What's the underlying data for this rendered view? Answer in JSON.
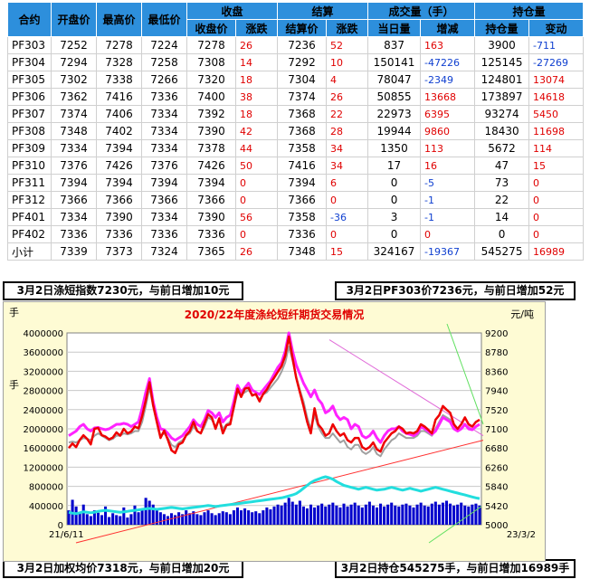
{
  "table": {
    "header_top": [
      "合约",
      "开盘价",
      "最高价",
      "最低价",
      "收盘",
      "结算",
      "成交量（手）",
      "持仓量"
    ],
    "header_sub": [
      "收盘价",
      "涨跌",
      "结算价",
      "涨跌",
      "当日量",
      "增减",
      "持仓量",
      "变动"
    ],
    "rows": [
      {
        "name": "PF303",
        "open": "7252",
        "high": "7278",
        "low": "7224",
        "close": "7278",
        "close_chg": "26",
        "settle": "7236",
        "settle_chg": "52",
        "vol": "837",
        "vol_chg": "163",
        "oi": "3900",
        "oi_chg": "-711"
      },
      {
        "name": "PF304",
        "open": "7294",
        "high": "7328",
        "low": "7258",
        "close": "7308",
        "close_chg": "14",
        "settle": "7292",
        "settle_chg": "10",
        "vol": "150141",
        "vol_chg": "-47226",
        "oi": "125145",
        "oi_chg": "-27269"
      },
      {
        "name": "PF305",
        "open": "7302",
        "high": "7338",
        "low": "7266",
        "close": "7320",
        "close_chg": "18",
        "settle": "7304",
        "settle_chg": "4",
        "vol": "78047",
        "vol_chg": "-2349",
        "oi": "124801",
        "oi_chg": "13074"
      },
      {
        "name": "PF306",
        "open": "7362",
        "high": "7416",
        "low": "7336",
        "close": "7400",
        "close_chg": "38",
        "settle": "7374",
        "settle_chg": "26",
        "vol": "50855",
        "vol_chg": "13668",
        "oi": "173897",
        "oi_chg": "14618"
      },
      {
        "name": "PF307",
        "open": "7374",
        "high": "7406",
        "low": "7334",
        "close": "7392",
        "close_chg": "18",
        "settle": "7368",
        "settle_chg": "22",
        "vol": "22973",
        "vol_chg": "6395",
        "oi": "93274",
        "oi_chg": "5450"
      },
      {
        "name": "PF308",
        "open": "7348",
        "high": "7402",
        "low": "7334",
        "close": "7390",
        "close_chg": "42",
        "settle": "7368",
        "settle_chg": "28",
        "vol": "19944",
        "vol_chg": "9860",
        "oi": "18430",
        "oi_chg": "11698"
      },
      {
        "name": "PF309",
        "open": "7334",
        "high": "7394",
        "low": "7334",
        "close": "7378",
        "close_chg": "44",
        "settle": "7358",
        "settle_chg": "34",
        "vol": "1350",
        "vol_chg": "113",
        "oi": "5672",
        "oi_chg": "114"
      },
      {
        "name": "PF310",
        "open": "7376",
        "high": "7426",
        "low": "7376",
        "close": "7426",
        "close_chg": "50",
        "settle": "7416",
        "settle_chg": "34",
        "vol": "17",
        "vol_chg": "16",
        "oi": "47",
        "oi_chg": "15"
      },
      {
        "name": "PF311",
        "open": "7394",
        "high": "7394",
        "low": "7394",
        "close": "7394",
        "close_chg": "0",
        "settle": "7394",
        "settle_chg": "6",
        "vol": "0",
        "vol_chg": "-5",
        "oi": "73",
        "oi_chg": "0"
      },
      {
        "name": "PF312",
        "open": "7366",
        "high": "7366",
        "low": "7366",
        "close": "7366",
        "close_chg": "0",
        "settle": "7366",
        "settle_chg": "0",
        "vol": "0",
        "vol_chg": "-1",
        "oi": "22",
        "oi_chg": "0"
      },
      {
        "name": "PF401",
        "open": "7334",
        "high": "7390",
        "low": "7334",
        "close": "7390",
        "close_chg": "56",
        "settle": "7358",
        "settle_chg": "-36",
        "vol": "3",
        "vol_chg": "-1",
        "oi": "14",
        "oi_chg": "0"
      },
      {
        "name": "PF402",
        "open": "7336",
        "high": "7336",
        "low": "7336",
        "close": "7336",
        "close_chg": "0",
        "settle": "7336",
        "settle_chg": "0",
        "vol": "0",
        "vol_chg": "0",
        "oi": "0",
        "oi_chg": "0"
      },
      {
        "name": "小计",
        "open": "7339",
        "high": "7373",
        "low": "7324",
        "close": "7365",
        "close_chg": "26",
        "settle": "7348",
        "settle_chg": "15",
        "vol": "324167",
        "vol_chg": "-19367",
        "oi": "545275",
        "oi_chg": "16989"
      }
    ]
  },
  "info": {
    "top_left": "3月2日涤短指数7230元，与前日增加10元",
    "top_right": "3月2日PF303价7236元，与前日增加52元",
    "bottom_left": "3月2日加权均价7318元，与前日增加20元",
    "bottom_right": "3月2日持仓545275手，与前日增加16989手"
  },
  "chart_data": {
    "type": "line",
    "title": "2020/22年度涤纶短纤期货交易情况",
    "left_axis_unit": "手",
    "left_axis_label": "手",
    "right_axis_unit": "元/吨",
    "x_start_label": "21/6/11",
    "x_end_label": "23/3/2",
    "left_ticks": [
      "0",
      "400000",
      "800000",
      "1200000",
      "1600000",
      "2000000",
      "2400000",
      "2800000",
      "3200000",
      "3600000",
      "4000000"
    ],
    "right_ticks": [
      "5000",
      "5420",
      "5840",
      "6260",
      "6680",
      "7100",
      "7520",
      "7940",
      "8360",
      "8780",
      "9200"
    ],
    "left_range": [
      0,
      4000000
    ],
    "right_range": [
      5000,
      9200
    ],
    "grid": true,
    "colors": {
      "price_red": "#ee0000",
      "price_magenta": "#ff22ff",
      "price_gray": "#a0a0a0",
      "open_interest": "#22dede",
      "volume": "#0000cc",
      "trend_red": "#ff3030",
      "trend_pink": "#e06ad8",
      "trend_green": "#60e060"
    },
    "series": [
      {
        "key": "settle_price",
        "axis": "right",
        "color": "#ee0000",
        "values": [
          6680,
          6780,
          6700,
          6860,
          6960,
          6880,
          6760,
          7100,
          7120,
          6960,
          6930,
          6870,
          6910,
          7020,
          6950,
          7100,
          7000,
          7040,
          7150,
          7110,
          7380,
          7720,
          8120,
          7620,
          7250,
          6900,
          7060,
          6860,
          6630,
          6570,
          6760,
          6800,
          6960,
          7050,
          7250,
          7050,
          7000,
          7220,
          7420,
          7350,
          7100,
          7330,
          7000,
          7180,
          7200,
          7580,
          7980,
          7800,
          7980,
          8000,
          7830,
          7860,
          7700,
          7860,
          7960,
          8100,
          8220,
          8350,
          8470,
          8700,
          9120,
          8650,
          8220,
          7900,
          7600,
          7250,
          7000,
          7550,
          7200,
          7100,
          6950,
          7000,
          7200,
          7050,
          6950,
          7000,
          6850,
          6800,
          6900,
          6900,
          6700,
          6650,
          6700,
          6800,
          6650,
          6600,
          6800,
          6900,
          7000,
          7050,
          7150,
          7100,
          7000,
          7020,
          7000,
          7050,
          7200,
          7150,
          7080,
          7000,
          7300,
          7400,
          7600,
          7520,
          7450,
          7200,
          7100,
          7200,
          7350,
          7200,
          7150,
          7250,
          7300
        ]
      },
      {
        "key": "reference_price",
        "axis": "right",
        "color": "#ff22ff",
        "values": [
          6950,
          7000,
          7050,
          7150,
          7200,
          7100,
          7050,
          7120,
          7130,
          7100,
          7080,
          7100,
          7150,
          7200,
          7200,
          7220,
          7200,
          7150,
          7200,
          7250,
          7550,
          7900,
          8200,
          7700,
          7350,
          7100,
          7080,
          7000,
          6900,
          6850,
          6900,
          6950,
          7050,
          7150,
          7300,
          7200,
          7150,
          7300,
          7500,
          7450,
          7350,
          7450,
          7250,
          7350,
          7400,
          7700,
          8050,
          7900,
          8000,
          8100,
          7950,
          7900,
          7850,
          7950,
          8050,
          8150,
          8300,
          8450,
          8550,
          8800,
          9200,
          8800,
          8500,
          8300,
          8100,
          7950,
          7800,
          7950,
          7750,
          7650,
          7450,
          7500,
          7600,
          7400,
          7300,
          7350,
          7300,
          7100,
          7200,
          7150,
          6950,
          6900,
          6950,
          7050,
          6900,
          6800,
          6950,
          7050,
          7100,
          7100,
          7150,
          7050,
          7000,
          6980,
          6950,
          7000,
          7150,
          7100,
          7050,
          6980,
          7050,
          7200,
          7350,
          7300,
          7250,
          7100,
          7050,
          7100,
          7200,
          7100,
          7080,
          7150,
          7200
        ]
      },
      {
        "key": "index_price",
        "axis": "right",
        "color": "#a0a0a0",
        "values": [
          6800,
          6820,
          6800,
          6850,
          6900,
          6880,
          6850,
          6950,
          7000,
          6950,
          6900,
          6850,
          6880,
          6950,
          6950,
          7000,
          6980,
          7000,
          7050,
          7050,
          7250,
          7600,
          8000,
          7600,
          7250,
          6950,
          7000,
          6900,
          6750,
          6700,
          6800,
          6850,
          6950,
          7000,
          7150,
          7050,
          7000,
          7150,
          7350,
          7300,
          7150,
          7300,
          7100,
          7200,
          7250,
          7550,
          7900,
          7850,
          7900,
          7950,
          7850,
          7850,
          7750,
          7850,
          7900,
          8000,
          8100,
          8200,
          8350,
          8550,
          8900,
          8600,
          8250,
          7950,
          7700,
          7350,
          7100,
          7400,
          7150,
          7000,
          6900,
          6900,
          7000,
          6900,
          6800,
          6850,
          6700,
          6650,
          6750,
          6750,
          6600,
          6550,
          6600,
          6700,
          6550,
          6500,
          6650,
          6750,
          6850,
          6900,
          7000,
          6950,
          6900,
          6900,
          6900,
          6950,
          7050,
          7050,
          7000,
          6950,
          7100,
          7250,
          7400,
          7350,
          7300,
          7150,
          7050,
          7100,
          7200,
          7100,
          7080,
          7150,
          7200
        ]
      },
      {
        "key": "open_interest",
        "axis": "left",
        "color": "#22dede",
        "values": [
          260000,
          240000,
          230000,
          250000,
          270000,
          260000,
          250000,
          260000,
          280000,
          290000,
          300000,
          290000,
          280000,
          270000,
          260000,
          270000,
          280000,
          290000,
          300000,
          310000,
          320000,
          330000,
          340000,
          330000,
          320000,
          330000,
          340000,
          350000,
          360000,
          350000,
          340000,
          330000,
          340000,
          350000,
          360000,
          370000,
          380000,
          390000,
          400000,
          390000,
          380000,
          390000,
          400000,
          410000,
          420000,
          430000,
          440000,
          450000,
          460000,
          470000,
          480000,
          490000,
          500000,
          510000,
          520000,
          530000,
          540000,
          550000,
          560000,
          580000,
          600000,
          620000,
          650000,
          700000,
          760000,
          820000,
          880000,
          920000,
          950000,
          980000,
          1000000,
          980000,
          950000,
          900000,
          860000,
          820000,
          800000,
          780000,
          760000,
          740000,
          760000,
          780000,
          760000,
          740000,
          720000,
          730000,
          740000,
          760000,
          780000,
          760000,
          740000,
          720000,
          740000,
          760000,
          740000,
          720000,
          700000,
          720000,
          740000,
          760000,
          780000,
          760000,
          740000,
          720000,
          700000,
          680000,
          660000,
          640000,
          620000,
          600000,
          580000,
          560000,
          545000
        ]
      }
    ],
    "volume_bars": {
      "axis": "left",
      "color": "#0000cc",
      "values": [
        300000,
        520000,
        380000,
        260000,
        420000,
        220000,
        180000,
        300000,
        250000,
        200000,
        380000,
        160000,
        240000,
        200000,
        180000,
        360000,
        150000,
        220000,
        400000,
        260000,
        320000,
        560000,
        500000,
        420000,
        300000,
        260000,
        220000,
        180000,
        240000,
        200000,
        260000,
        220000,
        300000,
        240000,
        280000,
        220000,
        200000,
        260000,
        300000,
        240000,
        200000,
        240000,
        280000,
        260000,
        220000,
        300000,
        360000,
        300000,
        340000,
        300000,
        260000,
        280000,
        240000,
        300000,
        360000,
        320000,
        380000,
        420000,
        400000,
        460000,
        560000,
        480000,
        420000,
        500000,
        380000,
        340000,
        420000,
        360000,
        400000,
        440000,
        380000,
        420000,
        460000,
        400000,
        360000,
        440000,
        380000,
        420000,
        460000,
        400000,
        360000,
        420000,
        480000,
        400000,
        360000,
        440000,
        380000,
        420000,
        460000,
        400000,
        380000,
        420000,
        440000,
        400000,
        360000,
        420000,
        460000,
        400000,
        380000,
        440000,
        480000,
        420000,
        460000,
        500000,
        440000,
        400000,
        420000,
        460000,
        400000,
        380000,
        420000,
        440000,
        400000
      ]
    }
  }
}
